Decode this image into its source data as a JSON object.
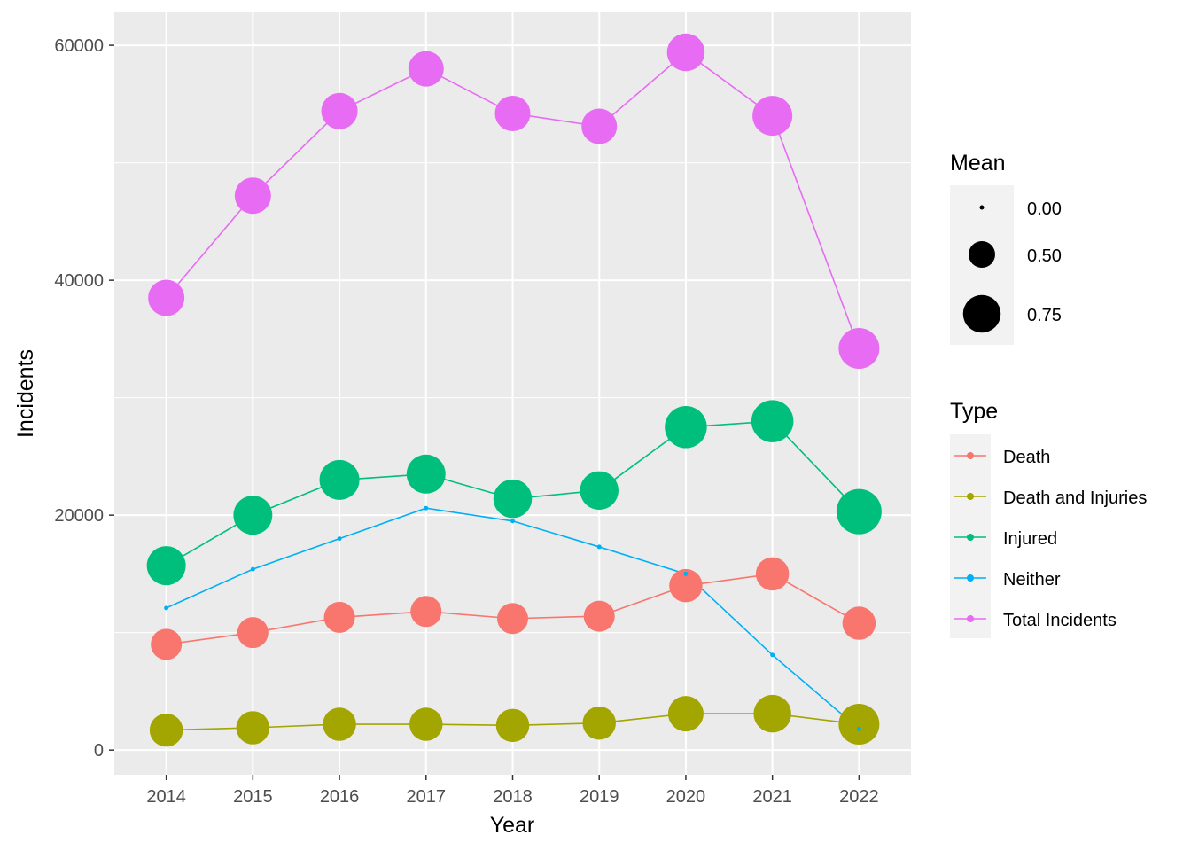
{
  "chart_data": {
    "type": "line",
    "xlabel": "Year",
    "ylabel": "Incidents",
    "x": [
      2014,
      2015,
      2016,
      2017,
      2018,
      2019,
      2020,
      2021,
      2022
    ],
    "x_tick_labels": [
      "2014",
      "2015",
      "2016",
      "2017",
      "2018",
      "2019",
      "2020",
      "2021",
      "2022"
    ],
    "y_ticks": [
      0,
      20000,
      40000,
      60000
    ],
    "y_tick_labels": [
      "0",
      "20000",
      "40000",
      "60000"
    ],
    "ylim": [
      -2100,
      62800
    ],
    "grid": true,
    "legend_placement": "right",
    "size_legend": {
      "title": "Mean",
      "entries": [
        {
          "label": "0.00",
          "value": 0.0
        },
        {
          "label": "0.50",
          "value": 0.5
        },
        {
          "label": "0.75",
          "value": 0.75
        }
      ]
    },
    "color_legend_title": "Type",
    "series": [
      {
        "name": "Death",
        "color": "#F8766D",
        "values": [
          9000,
          10000,
          11300,
          11800,
          11200,
          11400,
          14000,
          15000,
          10800
        ],
        "mean": [
          0.6,
          0.6,
          0.6,
          0.6,
          0.6,
          0.6,
          0.65,
          0.65,
          0.65
        ]
      },
      {
        "name": "Death and Injuries",
        "color": "#A3A500",
        "values": [
          1700,
          1900,
          2200,
          2200,
          2100,
          2300,
          3100,
          3100,
          2200
        ],
        "mean": [
          0.65,
          0.65,
          0.65,
          0.65,
          0.65,
          0.65,
          0.7,
          0.75,
          0.82
        ]
      },
      {
        "name": "Injured",
        "color": "#00BF7D",
        "values": [
          15700,
          20000,
          23000,
          23500,
          21400,
          22100,
          27500,
          28000,
          20300
        ],
        "mean": [
          0.78,
          0.78,
          0.8,
          0.78,
          0.77,
          0.77,
          0.85,
          0.85,
          0.92
        ]
      },
      {
        "name": "Neither",
        "color": "#00B0F6",
        "values": [
          12100,
          15400,
          18000,
          20600,
          19500,
          17300,
          15000,
          8100,
          1800
        ],
        "mean": [
          0,
          0,
          0,
          0,
          0,
          0,
          0,
          0,
          0
        ]
      },
      {
        "name": "Total Incidents",
        "color": "#E76BF3",
        "values": [
          38500,
          47200,
          54400,
          58000,
          54200,
          53100,
          59400,
          54000,
          34200
        ],
        "mean": [
          0.72,
          0.72,
          0.72,
          0.7,
          0.7,
          0.7,
          0.75,
          0.8,
          0.82
        ]
      }
    ]
  }
}
